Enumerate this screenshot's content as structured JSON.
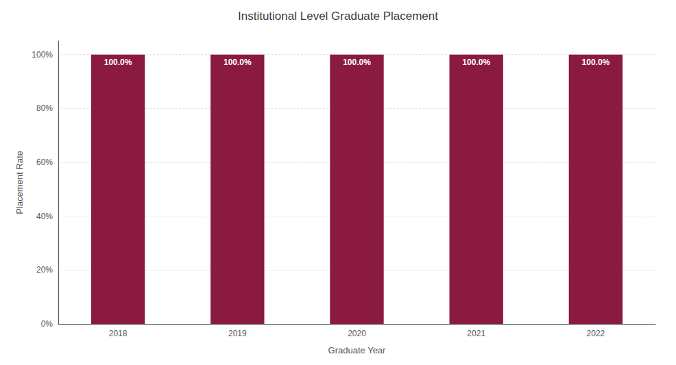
{
  "chart_data": {
    "type": "bar",
    "title": "Institutional Level Graduate Placement",
    "xlabel": "Graduate Year",
    "ylabel": "Placement Rate",
    "categories": [
      "2018",
      "2019",
      "2020",
      "2021",
      "2022"
    ],
    "values": [
      100.0,
      100.0,
      100.0,
      100.0,
      100.0
    ],
    "value_labels": [
      "100.0%",
      "100.0%",
      "100.0%",
      "100.0%",
      "100.0%"
    ],
    "data_labels": true,
    "color": "#8B1A40",
    "ylim": [
      0,
      105
    ],
    "yticks": [
      {
        "value": 0,
        "label": "0%"
      },
      {
        "value": 20,
        "label": "20%"
      },
      {
        "value": 40,
        "label": "40%"
      },
      {
        "value": 60,
        "label": "60%"
      },
      {
        "value": 80,
        "label": "80%"
      },
      {
        "value": 100,
        "label": "100%"
      }
    ],
    "grid": true
  }
}
